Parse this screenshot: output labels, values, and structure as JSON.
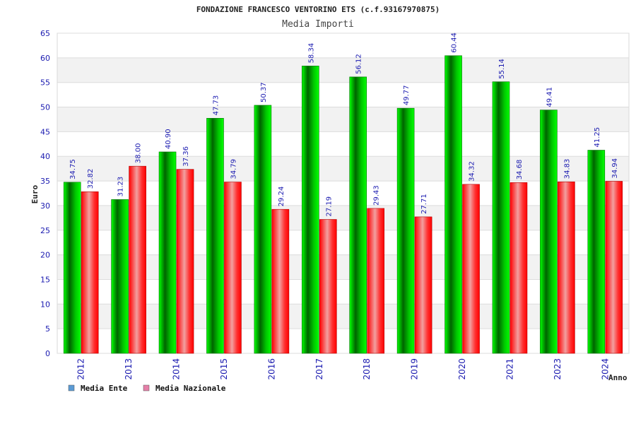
{
  "chart_data": {
    "type": "bar",
    "title": "FONDAZIONE FRANCESCO VENTORINO ETS (c.f.93167970875)",
    "subtitle": "Media Importi",
    "xlabel": "Anno",
    "ylabel": "Euro",
    "ylim": [
      0,
      65
    ],
    "yticks": [
      0,
      5,
      10,
      15,
      20,
      25,
      30,
      35,
      40,
      45,
      50,
      55,
      60,
      65
    ],
    "categories": [
      "2012",
      "2013",
      "2014",
      "2015",
      "2016",
      "2017",
      "2018",
      "2019",
      "2020",
      "2021",
      "2023",
      "2024"
    ],
    "series": [
      {
        "name": "Media Ente",
        "color": "#00b000",
        "legend_color": "#5b9bd5",
        "values": [
          34.75,
          31.23,
          40.9,
          47.73,
          50.37,
          58.34,
          56.12,
          49.77,
          60.44,
          55.14,
          49.41,
          41.25
        ],
        "labels": [
          "34.75",
          "31.23",
          "40.90",
          "47.73",
          "50.37",
          "58.34",
          "56.12",
          "49.77",
          "60.44",
          "55.14",
          "49.41",
          "41.25"
        ]
      },
      {
        "name": "Media Nazionale",
        "color": "#ff0000",
        "legend_color": "#e57fa8",
        "values": [
          32.82,
          38.0,
          37.36,
          34.79,
          29.24,
          27.19,
          29.43,
          27.71,
          34.32,
          34.68,
          34.83,
          34.94
        ],
        "labels": [
          "32.82",
          "38.00",
          "37.36",
          "34.79",
          "29.24",
          "27.19",
          "29.43",
          "27.71",
          "34.32",
          "34.68",
          "34.83",
          "34.94"
        ]
      }
    ],
    "grid": true,
    "legend_position": "bottom-left"
  }
}
